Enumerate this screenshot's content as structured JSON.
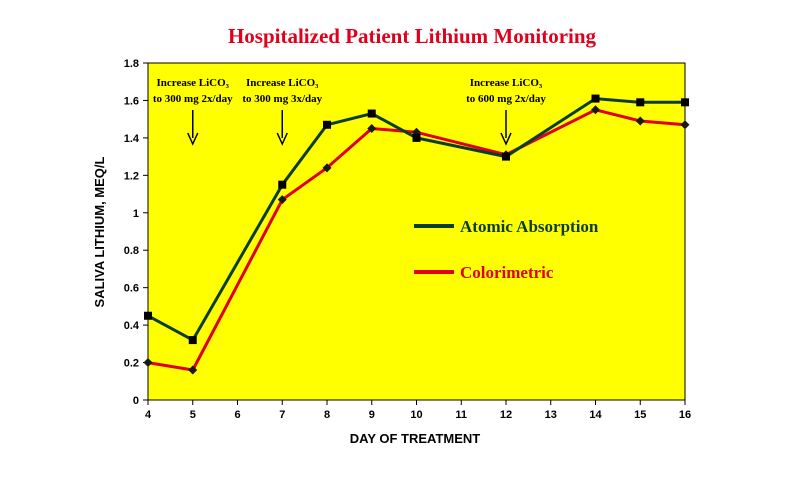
{
  "chart_data": {
    "type": "line",
    "title": "Hospitalized  Patient Lithium  Monitoring",
    "xlabel": "DAY OF TREATMENT",
    "ylabel": "SALIVA LITHIUM, MEQ/L",
    "xlim": [
      4,
      16
    ],
    "ylim": [
      0,
      1.8
    ],
    "x_ticks": [
      4,
      5,
      6,
      7,
      8,
      9,
      10,
      11,
      12,
      13,
      14,
      15,
      16
    ],
    "y_ticks": [
      "0",
      "0.2",
      "0.4",
      "0.6",
      "0.8",
      "1",
      "1.2",
      "1.4",
      "1.6",
      "1.8"
    ],
    "y_tick_values": [
      0,
      0.2,
      0.4,
      0.6,
      0.8,
      1.0,
      1.2,
      1.4,
      1.6,
      1.8
    ],
    "plot_background": "#ffff00",
    "grid": false,
    "legend_placement": "right",
    "series": [
      {
        "name": "Atomic Absorption",
        "color": "#0b3d2e",
        "marker": "square",
        "x": [
          4,
          5,
          7,
          8,
          9,
          10,
          12,
          14,
          15,
          16
        ],
        "y": [
          0.45,
          0.32,
          1.15,
          1.47,
          1.53,
          1.4,
          1.3,
          1.61,
          1.59,
          1.59
        ]
      },
      {
        "name": "Colorimetric",
        "color": "#e0001b",
        "marker": "diamond",
        "x": [
          4,
          5,
          7,
          8,
          9,
          10,
          12,
          14,
          15,
          16
        ],
        "y": [
          0.2,
          0.16,
          1.07,
          1.24,
          1.45,
          1.43,
          1.31,
          1.55,
          1.49,
          1.47
        ]
      }
    ],
    "annotations": [
      {
        "x": 5,
        "lines": [
          "Increase LiCO₃",
          "to 300 mg 2x/day"
        ]
      },
      {
        "x": 7,
        "lines": [
          "Increase LiCO₃",
          "to 300 mg 3x/day"
        ]
      },
      {
        "x": 12,
        "lines": [
          "Increase  LiCO₃",
          "to 600 mg 2x/day"
        ]
      }
    ]
  }
}
